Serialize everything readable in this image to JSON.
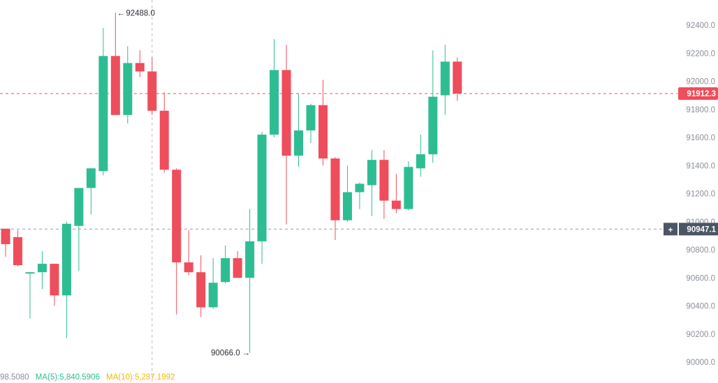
{
  "colors": {
    "up": "#2ebd93",
    "down": "#ee4d5c",
    "grid_dash": "#e05a5a",
    "crosshair": "#b9bcc4",
    "axis_text": "#8a8f99",
    "badge_last_bg": "#ee4d5c",
    "badge_cross_bg": "#4b5563",
    "ma5": "#2ebd93",
    "ma10": "#f0b90b",
    "truncated_value": "#8a8f99"
  },
  "chart_data": {
    "type": "candlestick",
    "y_axis": {
      "min": 90000,
      "max": 92400,
      "ticks": [
        92400.0,
        92200.0,
        92000.0,
        91800.0,
        91600.0,
        91400.0,
        91200.0,
        91000.0,
        90800.0,
        90600.0,
        90400.0,
        90200.0,
        90000.0
      ],
      "tick_labels": [
        "92400.0",
        "92200.0",
        "92000.0",
        "91800.0",
        "91600.0",
        "91400.0",
        "91200.0",
        "91000.0",
        "90800.0",
        "90600.0",
        "90400.0",
        "90200.0",
        "90000.0"
      ]
    },
    "candles": [
      {
        "o": 90950,
        "h": 90950,
        "l": 90750,
        "c": 90840
      },
      {
        "o": 90890,
        "h": 90940,
        "l": 90680,
        "c": 90690
      },
      {
        "o": 90630,
        "h": 90640,
        "l": 90310,
        "c": 90640
      },
      {
        "o": 90640,
        "h": 90790,
        "l": 90520,
        "c": 90700
      },
      {
        "o": 90700,
        "h": 90700,
        "l": 90400,
        "c": 90475
      },
      {
        "o": 90475,
        "h": 91000,
        "l": 90170,
        "c": 90985
      },
      {
        "o": 90970,
        "h": 91240,
        "l": 90650,
        "c": 91240
      },
      {
        "o": 91240,
        "h": 91380,
        "l": 91050,
        "c": 91380
      },
      {
        "o": 91360,
        "h": 92380,
        "l": 91330,
        "c": 92180
      },
      {
        "o": 92180,
        "h": 92488,
        "l": 91760,
        "c": 91760
      },
      {
        "o": 91760,
        "h": 92250,
        "l": 91700,
        "c": 92130
      },
      {
        "o": 92130,
        "h": 92220,
        "l": 92030,
        "c": 92070
      },
      {
        "o": 92070,
        "h": 92170,
        "l": 91760,
        "c": 91790
      },
      {
        "o": 91790,
        "h": 91920,
        "l": 91350,
        "c": 91370
      },
      {
        "o": 91370,
        "h": 91380,
        "l": 90340,
        "c": 90710
      },
      {
        "o": 90710,
        "h": 90940,
        "l": 90620,
        "c": 90640
      },
      {
        "o": 90640,
        "h": 90760,
        "l": 90320,
        "c": 90390
      },
      {
        "o": 90390,
        "h": 90740,
        "l": 90380,
        "c": 90565
      },
      {
        "o": 90570,
        "h": 90830,
        "l": 90560,
        "c": 90740
      },
      {
        "o": 90740,
        "h": 90790,
        "l": 90600,
        "c": 90600
      },
      {
        "o": 90600,
        "h": 91090,
        "l": 90066,
        "c": 90860
      },
      {
        "o": 90860,
        "h": 91640,
        "l": 90700,
        "c": 91620
      },
      {
        "o": 91620,
        "h": 92300,
        "l": 91600,
        "c": 92080
      },
      {
        "o": 92080,
        "h": 92260,
        "l": 90980,
        "c": 91470
      },
      {
        "o": 91470,
        "h": 91910,
        "l": 91390,
        "c": 91650
      },
      {
        "o": 91650,
        "h": 91840,
        "l": 91560,
        "c": 91830
      },
      {
        "o": 91830,
        "h": 92010,
        "l": 91400,
        "c": 91450
      },
      {
        "o": 91450,
        "h": 91460,
        "l": 90870,
        "c": 91010
      },
      {
        "o": 91010,
        "h": 91400,
        "l": 91000,
        "c": 91210
      },
      {
        "o": 91210,
        "h": 91280,
        "l": 91090,
        "c": 91270
      },
      {
        "o": 91260,
        "h": 91510,
        "l": 91040,
        "c": 91440
      },
      {
        "o": 91440,
        "h": 91510,
        "l": 91020,
        "c": 91150
      },
      {
        "o": 91150,
        "h": 91340,
        "l": 91060,
        "c": 91090
      },
      {
        "o": 91090,
        "h": 91430,
        "l": 91080,
        "c": 91390
      },
      {
        "o": 91380,
        "h": 91620,
        "l": 91320,
        "c": 91480
      },
      {
        "o": 91480,
        "h": 92220,
        "l": 91420,
        "c": 91890
      },
      {
        "o": 91900,
        "h": 92260,
        "l": 91760,
        "c": 92140
      },
      {
        "o": 92140,
        "h": 92170,
        "l": 91860,
        "c": 91912.3
      }
    ],
    "annotations": {
      "high_label": "92488.0",
      "high_candle_index": 9,
      "low_label": "90066.0",
      "low_candle_index": 20
    },
    "last_price": {
      "value": 91912.3,
      "label": "91912.3"
    },
    "crosshair": {
      "price": 90947.1,
      "label": "90947.1",
      "candle_index": 12
    }
  },
  "bottom_bar": {
    "truncated_value": "98.5080",
    "ma5_label": "MA(5):5,840.5906",
    "ma10_label": "MA(10):5,287.1992"
  },
  "crosshair_plus_symbol": "+"
}
